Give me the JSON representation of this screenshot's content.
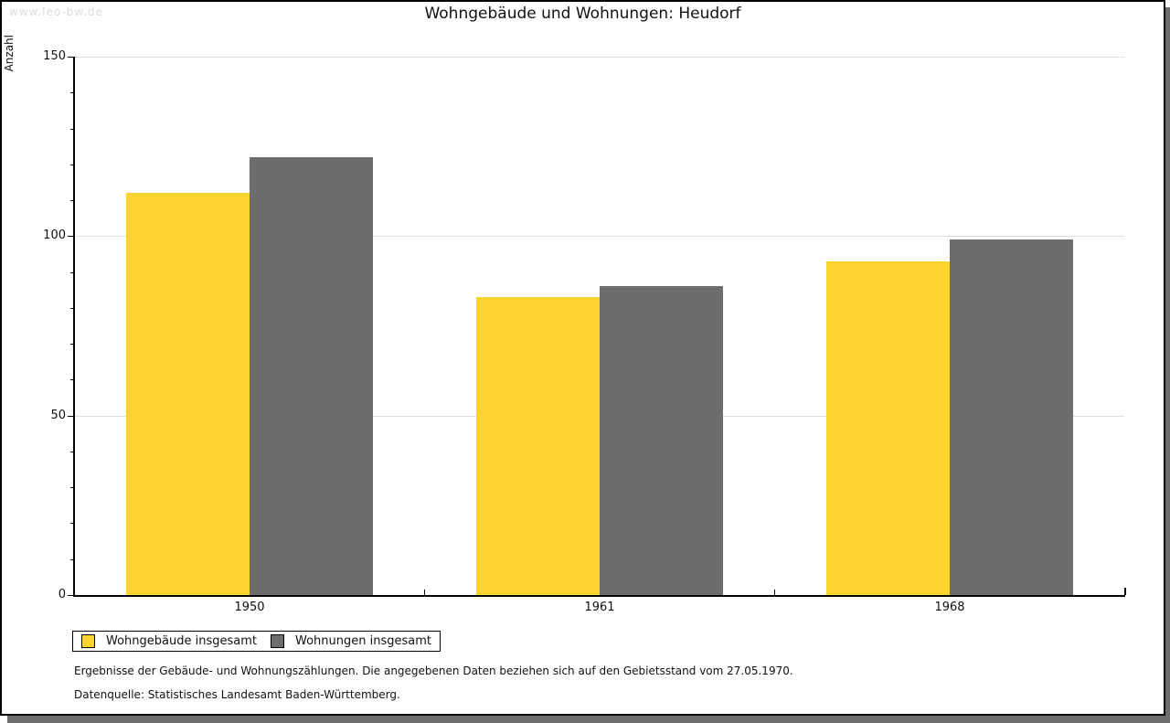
{
  "watermark": "www.leo-bw.de",
  "chart_data": {
    "type": "bar",
    "title": "Wohngebäude und Wohnungen: Heudorf",
    "categories": [
      "1950",
      "1961",
      "1968"
    ],
    "series": [
      {
        "name": "Wohngebäude insgesamt",
        "color": "#fdd32e",
        "values": [
          112,
          83,
          93
        ]
      },
      {
        "name": "Wohnungen insgesamt",
        "color": "#6d6d6d",
        "values": [
          122,
          86,
          99
        ]
      }
    ],
    "xlabel": "",
    "ylabel": "Anzahl",
    "ylim": [
      0,
      150
    ],
    "yticks": [
      0,
      50,
      100,
      150
    ],
    "y_minor_step": 10,
    "grid": true,
    "gridline_color": "#e0e0e0",
    "legend_position": "bottom-left"
  },
  "footer": {
    "line1": "Ergebnisse der Gebäude- und Wohnungszählungen. Die angegebenen Daten beziehen sich auf den Gebietsstand vom 27.05.1970.",
    "line2": "Datenquelle: Statistisches Landesamt Baden-Württemberg."
  }
}
